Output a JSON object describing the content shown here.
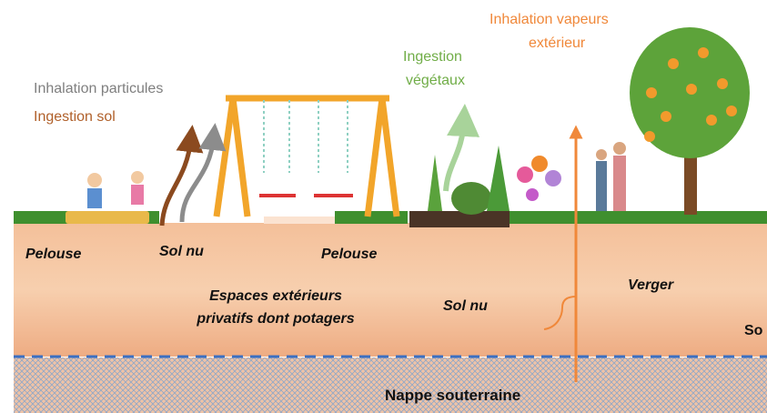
{
  "pathways": [
    {
      "lines": [
        "Inhalation particules"
      ]
    },
    {
      "lines": [
        "Ingestion sol"
      ]
    },
    {
      "lines": [
        "Ingestion",
        "végétaux"
      ]
    },
    {
      "lines": [
        "Inhalation vapeurs",
        "extérieur"
      ]
    }
  ],
  "zones": [
    "Pelouse",
    "Sol nu",
    "Pelouse",
    "Sol nu",
    "Verger",
    "So"
  ],
  "area": {
    "lines": [
      "Espaces extérieurs",
      "privatifs dont potagers"
    ]
  },
  "groundwater": "Nappe souterraine"
}
